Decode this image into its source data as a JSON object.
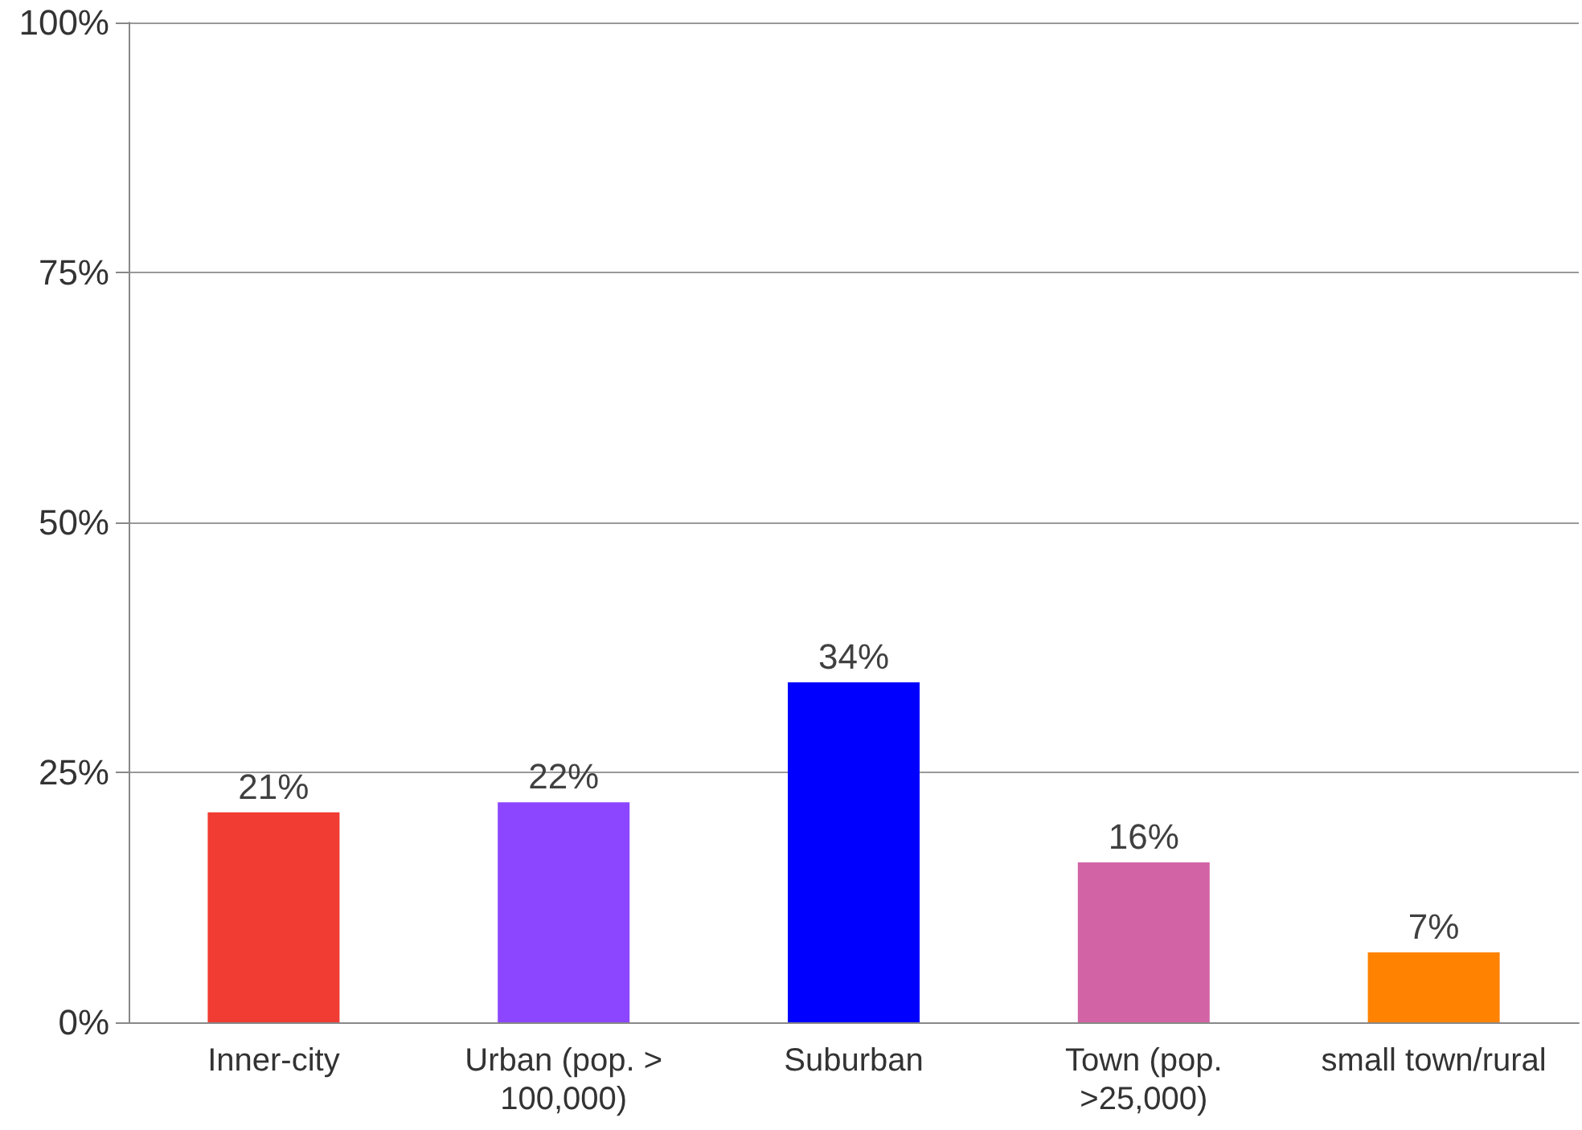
{
  "chart_data": {
    "type": "bar",
    "categories": [
      "Inner-city",
      "Urban (pop. > 100,000)",
      "Suburban",
      "Town (pop. >25,000)",
      "small town/rural"
    ],
    "values": [
      21,
      22,
      34,
      16,
      7
    ],
    "colors": [
      "#f03c32",
      "#8c46ff",
      "#0000ff",
      "#d264a5",
      "#ff8200"
    ],
    "value_labels": [
      "21%",
      "22%",
      "34%",
      "16%",
      "7%"
    ],
    "ylim": [
      0,
      100
    ],
    "yticks": [
      {
        "value": 0,
        "label": "0%"
      },
      {
        "value": 25,
        "label": "25%"
      },
      {
        "value": 50,
        "label": "50%"
      },
      {
        "value": 75,
        "label": "75%"
      },
      {
        "value": 100,
        "label": "100%"
      }
    ],
    "grid": "y"
  }
}
